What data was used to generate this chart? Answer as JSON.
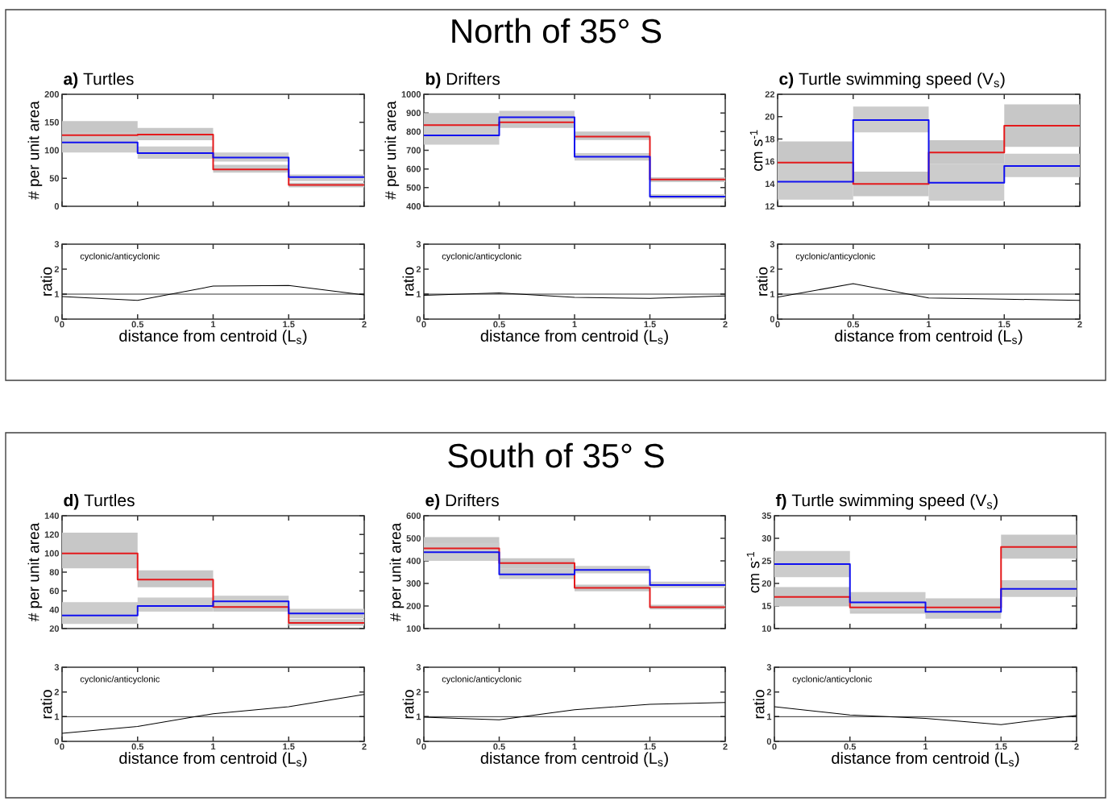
{
  "chart_data": [
    {
      "type": "step",
      "title": "**a)** Turtles",
      "ylabel": "# per unit area",
      "annotations": [
        "North of 35° S"
      ],
      "x": [
        0,
        0.5,
        1,
        1.5,
        2
      ],
      "xlim": [
        0,
        2
      ],
      "xticks": [
        0,
        0.5,
        1,
        1.5,
        2
      ],
      "ylim": [
        0,
        200
      ],
      "yticks": [
        0,
        50,
        100,
        150,
        200
      ],
      "tick_labels": "y",
      "series": [
        {
          "color": "#e41a1c",
          "values": [
            127,
            128,
            66,
            38,
            38
          ],
          "lower": [
            100,
            118,
            60,
            34,
            34
          ],
          "upper": [
            152,
            140,
            74,
            42,
            42
          ]
        },
        {
          "color": "#1010f0",
          "values": [
            114,
            95,
            87,
            52,
            52
          ],
          "lower": [
            96,
            85,
            80,
            45,
            45
          ],
          "upper": [
            132,
            107,
            96,
            57,
            57
          ]
        }
      ]
    },
    {
      "type": "step",
      "title": "**b)** Drifters",
      "ylabel": "# per unit area",
      "x": [
        0,
        0.5,
        1,
        1.5,
        2
      ],
      "xlim": [
        0,
        2
      ],
      "xticks": [
        0,
        0.5,
        1,
        1.5,
        2
      ],
      "ylim": [
        400,
        1000
      ],
      "yticks": [
        400,
        500,
        600,
        700,
        800,
        900,
        1000
      ],
      "tick_labels": "y",
      "series": [
        {
          "color": "#e41a1c",
          "values": [
            835,
            850,
            773,
            543,
            543
          ],
          "lower": [
            770,
            820,
            755,
            530,
            530
          ],
          "upper": [
            900,
            880,
            800,
            555,
            555
          ]
        },
        {
          "color": "#1010f0",
          "values": [
            780,
            877,
            665,
            452,
            452
          ],
          "lower": [
            730,
            840,
            645,
            440,
            440
          ],
          "upper": [
            830,
            912,
            685,
            465,
            465
          ]
        }
      ]
    },
    {
      "type": "step",
      "title": "**c)** Turtle swimming speed (V$_{s}$)",
      "ylabel": "cm s$^{-1}$",
      "x": [
        0,
        0.5,
        1,
        1.5,
        2
      ],
      "xlim": [
        0,
        2
      ],
      "xticks": [
        0,
        0.5,
        1,
        1.5,
        2
      ],
      "ylim": [
        12,
        22
      ],
      "yticks": [
        12,
        14,
        16,
        18,
        20,
        22
      ],
      "tick_labels": "y",
      "series": [
        {
          "color": "#e41a1c",
          "values": [
            15.9,
            14.0,
            16.8,
            19.2,
            19.2
          ],
          "lower": [
            14.0,
            12.9,
            15.8,
            17.3,
            17.3
          ],
          "upper": [
            17.8,
            15.1,
            17.9,
            21.1,
            21.1
          ]
        },
        {
          "color": "#1010f0",
          "values": [
            14.2,
            19.7,
            14.1,
            15.6,
            15.6
          ],
          "lower": [
            12.6,
            18.6,
            12.5,
            14.6,
            14.6
          ],
          "upper": [
            15.8,
            20.9,
            15.8,
            16.7,
            16.7
          ]
        }
      ]
    },
    {
      "type": "line",
      "xlabel": "distance from centroid (L$_{s}$)",
      "ylabel": "ratio",
      "annotations": [
        "cyclonic/anticyclonic"
      ],
      "x": [
        0,
        0.5,
        1,
        1.5,
        2
      ],
      "xlim": [
        0,
        2
      ],
      "xticks": [
        0,
        0.5,
        1,
        1.5,
        2
      ],
      "ylim": [
        0,
        3
      ],
      "yticks": [
        0,
        1,
        2,
        3
      ],
      "ref_lines": [
        {
          "axis": "y",
          "value": 1,
          "color": "#000000"
        }
      ],
      "series": [
        {
          "color": "#000000",
          "values": [
            0.9,
            0.75,
            1.32,
            1.35,
            0.97
          ]
        }
      ]
    },
    {
      "type": "line",
      "xlabel": "distance from centroid (L$_{s}$)",
      "ylabel": "ratio",
      "annotations": [
        "cyclonic/anticyclonic"
      ],
      "x": [
        0,
        0.5,
        1,
        1.5,
        2
      ],
      "xlim": [
        0,
        2
      ],
      "xticks": [
        0,
        0.5,
        1,
        1.5,
        2
      ],
      "ylim": [
        0,
        3
      ],
      "yticks": [
        0,
        1,
        2,
        3
      ],
      "ref_lines": [
        {
          "axis": "y",
          "value": 1,
          "color": "#000000"
        }
      ],
      "series": [
        {
          "color": "#000000",
          "values": [
            0.95,
            1.05,
            0.87,
            0.83,
            0.93
          ]
        }
      ]
    },
    {
      "type": "line",
      "xlabel": "distance from centroid (L$_{s}$)",
      "ylabel": "ratio",
      "annotations": [
        "cyclonic/anticyclonic"
      ],
      "x": [
        0,
        0.5,
        1,
        1.5,
        2
      ],
      "xlim": [
        0,
        2
      ],
      "xticks": [
        0,
        0.5,
        1,
        1.5,
        2
      ],
      "ylim": [
        0,
        3
      ],
      "yticks": [
        0,
        1,
        2,
        3
      ],
      "ref_lines": [
        {
          "axis": "y",
          "value": 1,
          "color": "#000000"
        }
      ],
      "series": [
        {
          "color": "#000000",
          "values": [
            0.88,
            1.42,
            0.85,
            0.8,
            0.75
          ]
        }
      ]
    },
    {
      "type": "step",
      "title": "**d)** Turtles",
      "ylabel": "# per unit area",
      "annotations": [
        "South of 35° S"
      ],
      "x": [
        0,
        0.5,
        1,
        1.5,
        2
      ],
      "xlim": [
        0,
        2
      ],
      "xticks": [
        0,
        0.5,
        1,
        1.5,
        2
      ],
      "ylim": [
        20,
        140
      ],
      "yticks": [
        20,
        40,
        60,
        80,
        100,
        120,
        140
      ],
      "tick_labels": "y",
      "series": [
        {
          "color": "#e41a1c",
          "values": [
            100,
            72,
            43,
            26,
            26
          ],
          "lower": [
            84,
            64,
            38,
            23,
            23
          ],
          "upper": [
            122,
            82,
            48,
            30,
            30
          ]
        },
        {
          "color": "#1010f0",
          "values": [
            34,
            44,
            49,
            36,
            36
          ],
          "lower": [
            25,
            38,
            44,
            31,
            31
          ],
          "upper": [
            48,
            53,
            55,
            41,
            41
          ]
        }
      ]
    },
    {
      "type": "step",
      "title": "**e)** Drifters",
      "ylabel": "# per unit area",
      "x": [
        0,
        0.5,
        1,
        1.5,
        2
      ],
      "xlim": [
        0,
        2
      ],
      "xticks": [
        0,
        0.5,
        1,
        1.5,
        2
      ],
      "ylim": [
        100,
        600
      ],
      "yticks": [
        100,
        200,
        300,
        400,
        500,
        600
      ],
      "tick_labels": "y",
      "series": [
        {
          "color": "#e41a1c",
          "values": [
            455,
            390,
            280,
            195,
            195
          ],
          "lower": [
            410,
            365,
            265,
            185,
            185
          ],
          "upper": [
            505,
            412,
            295,
            205,
            205
          ]
        },
        {
          "color": "#1010f0",
          "values": [
            438,
            340,
            360,
            293,
            293
          ],
          "lower": [
            400,
            320,
            345,
            280,
            280
          ],
          "upper": [
            480,
            365,
            378,
            308,
            308
          ]
        }
      ]
    },
    {
      "type": "step",
      "title": "**f)** Turtle swimming speed (V$_{s}$)",
      "ylabel": "cm s$^{-1}$",
      "x": [
        0,
        0.5,
        1,
        1.5,
        2
      ],
      "xlim": [
        0,
        2
      ],
      "xticks": [
        0,
        0.5,
        1,
        1.5,
        2
      ],
      "ylim": [
        10,
        35
      ],
      "yticks": [
        10,
        15,
        20,
        25,
        30,
        35
      ],
      "tick_labels": "y",
      "series": [
        {
          "color": "#e41a1c",
          "values": [
            17.0,
            14.7,
            14.7,
            28.1,
            28.1
          ],
          "lower": [
            14.9,
            13.3,
            13.0,
            25.5,
            25.5
          ],
          "upper": [
            19.2,
            16.0,
            16.7,
            30.8,
            30.8
          ]
        },
        {
          "color": "#1010f0",
          "values": [
            24.3,
            15.8,
            13.7,
            18.8,
            18.8
          ],
          "lower": [
            21.4,
            13.8,
            12.2,
            17.0,
            17.0
          ],
          "upper": [
            27.2,
            18.1,
            15.0,
            20.7,
            20.7
          ]
        }
      ]
    },
    {
      "type": "line",
      "xlabel": "distance from centroid (L$_{s}$)",
      "ylabel": "ratio",
      "annotations": [
        "cyclonic/anticyclonic"
      ],
      "x": [
        0,
        0.5,
        1,
        1.5,
        2
      ],
      "xlim": [
        0,
        2
      ],
      "xticks": [
        0,
        0.5,
        1,
        1.5,
        2
      ],
      "ylim": [
        0,
        3
      ],
      "yticks": [
        0,
        1,
        2,
        3
      ],
      "ref_lines": [
        {
          "axis": "y",
          "value": 1,
          "color": "#000000"
        }
      ],
      "series": [
        {
          "color": "#000000",
          "values": [
            0.33,
            0.6,
            1.12,
            1.4,
            1.9
          ]
        }
      ]
    },
    {
      "type": "line",
      "xlabel": "distance from centroid (L$_{s}$)",
      "ylabel": "ratio",
      "annotations": [
        "cyclonic/anticyclonic"
      ],
      "x": [
        0,
        0.5,
        1,
        1.5,
        2
      ],
      "xlim": [
        0,
        2
      ],
      "xticks": [
        0,
        0.5,
        1,
        1.5,
        2
      ],
      "ylim": [
        0,
        3
      ],
      "yticks": [
        0,
        1,
        2,
        3
      ],
      "ref_lines": [
        {
          "axis": "y",
          "value": 1,
          "color": "#000000"
        }
      ],
      "series": [
        {
          "color": "#000000",
          "values": [
            0.98,
            0.87,
            1.28,
            1.5,
            1.57
          ]
        }
      ]
    },
    {
      "type": "line",
      "xlabel": "distance from centroid (L$_{s}$)",
      "ylabel": "ratio",
      "annotations": [
        "cyclonic/anticyclonic"
      ],
      "x": [
        0,
        0.5,
        1,
        1.5,
        2
      ],
      "xlim": [
        0,
        2
      ],
      "xticks": [
        0,
        0.5,
        1,
        1.5,
        2
      ],
      "ylim": [
        0,
        3
      ],
      "yticks": [
        0,
        1,
        2,
        3
      ],
      "ref_lines": [
        {
          "axis": "y",
          "value": 1,
          "color": "#000000"
        }
      ],
      "series": [
        {
          "color": "#000000",
          "values": [
            1.4,
            1.07,
            0.93,
            0.68,
            1.05
          ]
        }
      ]
    }
  ]
}
